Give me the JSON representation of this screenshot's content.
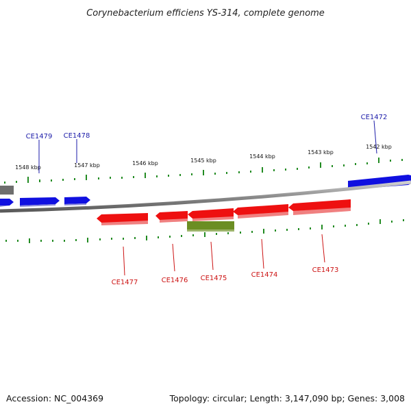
{
  "title": "Corynebacterium efficiens YS-314, complete genome",
  "footer": {
    "accession": "Accession: NC_004369",
    "summary": "Topology: circular; Length: 3,147,090 bp; Genes: 3,008"
  },
  "colors": {
    "forward_gene": "#1010e0",
    "reverse_gene": "#ee1010",
    "rna_gene": "#6b8e23",
    "ticks": "#228b22",
    "backbone": "#8c8c8c",
    "forward_label": "#1a1aa8",
    "reverse_label": "#cc1111"
  },
  "scale": {
    "unit": "kbp",
    "ticks": [
      {
        "kbp": 1548,
        "label": "1548 kbp"
      },
      {
        "kbp": 1547,
        "label": "1547 kbp"
      },
      {
        "kbp": 1546,
        "label": "1546 kbp"
      },
      {
        "kbp": 1545,
        "label": "1545 kbp"
      },
      {
        "kbp": 1544,
        "label": "1544 kbp"
      },
      {
        "kbp": 1543,
        "label": "1543 kbp"
      },
      {
        "kbp": 1542,
        "label": "1542 kbp"
      }
    ]
  },
  "genes": {
    "forward": [
      {
        "name": "CE1479"
      },
      {
        "name": "CE1478"
      },
      {
        "name": "CE1472"
      }
    ],
    "reverse": [
      {
        "name": "CE1477"
      },
      {
        "name": "CE1476"
      },
      {
        "name": "CE1475"
      },
      {
        "name": "CE1474"
      },
      {
        "name": "CE1473"
      }
    ]
  }
}
